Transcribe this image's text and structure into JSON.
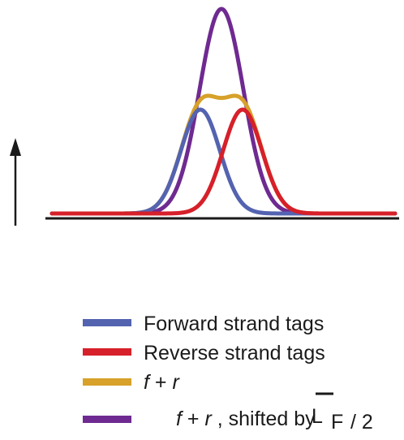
{
  "colors": {
    "forward": "#5463b0",
    "reverse": "#d6202a",
    "sum": "#d7a12a",
    "shifted": "#6f2a91",
    "axis": "#1a1a1a"
  },
  "legend": {
    "forward": {
      "label": "Forward strand tags"
    },
    "reverse": {
      "label": "Reverse strand tags"
    },
    "sum": {
      "f": "f",
      "plus": " + ",
      "r": "r"
    },
    "shifted": {
      "f": "f",
      "plus": " + ",
      "r": "r",
      "suffix": " , shifted by ",
      "L": "L",
      "F": "F",
      "over2": " / 2"
    }
  }
}
